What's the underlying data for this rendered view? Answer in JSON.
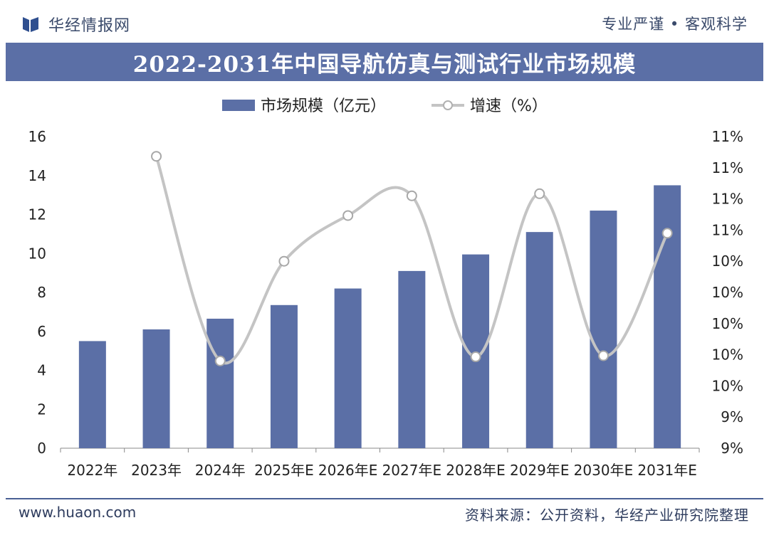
{
  "header": {
    "brand": "华经情报网",
    "slogan": "专业严谨 • 客观科学",
    "logo_icon": "book-logo-icon"
  },
  "title": "2022-2031年中国导航仿真与测试行业市场规模",
  "footer": {
    "website": "www.huaon.com",
    "source": "资料来源：公开资料，华经产业研究院整理"
  },
  "colors": {
    "bar": "#5b6fa6",
    "line": "#c4c4c4",
    "marker_fill": "#ffffff",
    "axis_text": "#222222",
    "title_bg": "#5b6fa6"
  },
  "chart_data": {
    "type": "bar",
    "categories": [
      "2022年",
      "2023年",
      "2024年",
      "2025年E",
      "2026年E",
      "2027年E",
      "2028年E",
      "2029年E",
      "2030年E",
      "2031年E"
    ],
    "series": [
      {
        "name": "市场规模（亿元）",
        "type": "bar",
        "axis": "left",
        "values": [
          5.5,
          6.1,
          6.65,
          7.35,
          8.2,
          9.1,
          9.95,
          11.1,
          12.2,
          13.5
        ]
      },
      {
        "name": "增速（%）",
        "type": "line",
        "axis": "right",
        "smooth": true,
        "values": [
          null,
          11.81,
          9.84,
          10.8,
          11.24,
          11.43,
          9.88,
          11.45,
          9.89,
          11.07
        ]
      }
    ],
    "left_axis": {
      "ylim": [
        0,
        16
      ],
      "ticks": [
        "0",
        "2",
        "4",
        "6",
        "8",
        "10",
        "12",
        "14",
        "16"
      ]
    },
    "right_axis": {
      "ylim": [
        9.0,
        12.0
      ],
      "ticks": [
        "9%",
        "9%",
        "10%",
        "10%",
        "10%",
        "10%",
        "10%",
        "11%",
        "11%",
        "11%",
        "11%"
      ]
    },
    "legend": {
      "placement": "top-center"
    },
    "grid": false
  }
}
